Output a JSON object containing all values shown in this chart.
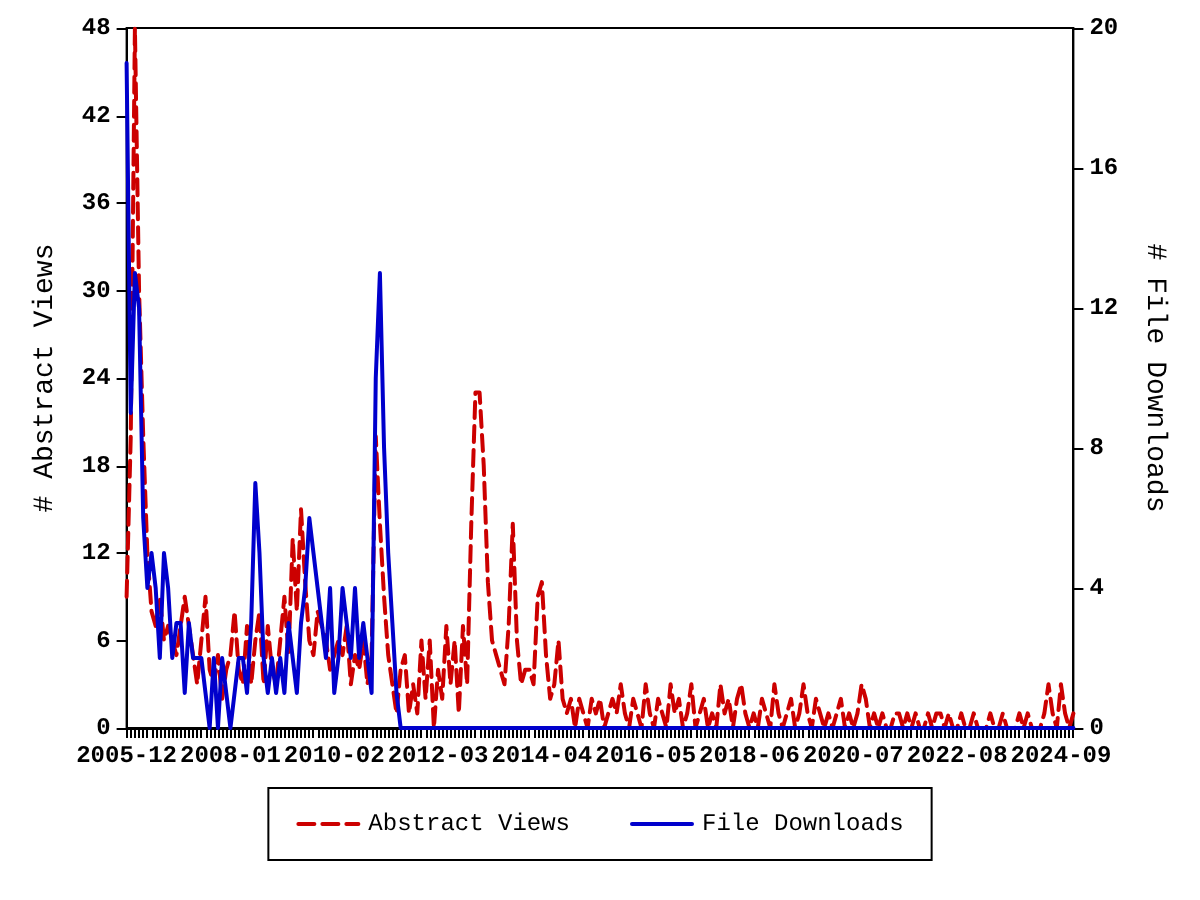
{
  "chart_data": {
    "type": "line",
    "ylabel": "# Abstract Views",
    "y2label": "# File Downloads",
    "ylim": [
      0,
      48
    ],
    "yticks": [
      0,
      6,
      12,
      18,
      24,
      30,
      36,
      42,
      48
    ],
    "y2lim": [
      0,
      20
    ],
    "y2ticks": [
      0,
      4,
      8,
      12,
      16,
      20
    ],
    "grid": false,
    "legend": "bottom",
    "marker": "none",
    "categories": [
      "2005-12",
      null,
      null,
      null,
      null,
      null,
      null,
      null,
      null,
      null,
      null,
      null,
      null,
      null,
      null,
      null,
      null,
      null,
      null,
      null,
      null,
      null,
      null,
      null,
      null,
      "2008-01",
      null,
      null,
      null,
      null,
      null,
      null,
      null,
      null,
      null,
      null,
      null,
      null,
      null,
      null,
      null,
      null,
      null,
      null,
      null,
      null,
      null,
      null,
      null,
      null,
      "2010-02",
      null,
      null,
      null,
      null,
      null,
      null,
      null,
      null,
      null,
      null,
      null,
      null,
      null,
      null,
      null,
      null,
      null,
      null,
      null,
      null,
      null,
      null,
      null,
      null,
      "2012-03",
      null,
      null,
      null,
      null,
      null,
      null,
      null,
      null,
      null,
      null,
      null,
      null,
      null,
      null,
      null,
      null,
      null,
      null,
      null,
      null,
      null,
      null,
      null,
      null,
      "2014-04",
      null,
      null,
      null,
      null,
      null,
      null,
      null,
      null,
      null,
      null,
      null,
      null,
      null,
      null,
      null,
      null,
      null,
      null,
      null,
      null,
      null,
      null,
      null,
      null,
      "2016-05",
      null,
      null,
      null,
      null,
      null,
      null,
      null,
      null,
      null,
      null,
      null,
      null,
      null,
      null,
      null,
      null,
      null,
      null,
      null,
      null,
      null,
      null,
      null,
      null,
      "2018-06",
      null,
      null,
      null,
      null,
      null,
      null,
      null,
      null,
      null,
      null,
      null,
      null,
      null,
      null,
      null,
      null,
      null,
      null,
      null,
      null,
      null,
      null,
      null,
      null,
      "2020-07",
      null,
      null,
      null,
      null,
      null,
      null,
      null,
      null,
      null,
      null,
      null,
      null,
      null,
      null,
      null,
      null,
      null,
      null,
      null,
      null,
      null,
      null,
      null,
      null,
      "2022-08",
      null,
      null,
      null,
      null,
      null,
      null,
      null,
      null,
      null,
      null,
      null,
      null,
      null,
      null,
      null,
      null,
      null,
      null,
      null,
      null,
      null,
      null,
      null,
      null,
      "2024-09",
      null,
      null,
      null
    ],
    "series": [
      {
        "name": "Abstract Views",
        "color": "#cc0000",
        "line_style": "dashed",
        "values": [
          9,
          20,
          48,
          30,
          20,
          12,
          8,
          7,
          9,
          6,
          7,
          6,
          5,
          7,
          9,
          7,
          5,
          3,
          6,
          9,
          4,
          3,
          5,
          2,
          4,
          5,
          8,
          4,
          3,
          7,
          3,
          6,
          8,
          3,
          7,
          4,
          3,
          6,
          9,
          5,
          13,
          8,
          15,
          10,
          6,
          5,
          8,
          7,
          6,
          4,
          5,
          6,
          5,
          7,
          3,
          5,
          4,
          6,
          3,
          5,
          20,
          14,
          9,
          5,
          3,
          1,
          4,
          5,
          1,
          3,
          1,
          6,
          2,
          6,
          0,
          4,
          2,
          7,
          3,
          6,
          1,
          7,
          3,
          14,
          23,
          23,
          18,
          10,
          6,
          5,
          4,
          3,
          7,
          14,
          6,
          3,
          4,
          4,
          3,
          9,
          10,
          5,
          2,
          3,
          6,
          2,
          1,
          2,
          0,
          2,
          1,
          0,
          2,
          1,
          2,
          0,
          1,
          2,
          1,
          3,
          1,
          0,
          2,
          1,
          0,
          3,
          1,
          0,
          2,
          1,
          0,
          3,
          1,
          2,
          0,
          1,
          3,
          0,
          1,
          2,
          0,
          1,
          0,
          3,
          1,
          2,
          0,
          2,
          3,
          1,
          0,
          1,
          0,
          2,
          1,
          0,
          3,
          1,
          0,
          1,
          2,
          0,
          1,
          3,
          1,
          0,
          2,
          1,
          0,
          1,
          0,
          1,
          2,
          0,
          1,
          0,
          1,
          3,
          2,
          0,
          1,
          0,
          1,
          0,
          0,
          1,
          1,
          0,
          1,
          0,
          1,
          0,
          0,
          1,
          0,
          1,
          1,
          0,
          1,
          0,
          0,
          1,
          0,
          0,
          1,
          0,
          0,
          0,
          1,
          0,
          0,
          1,
          0,
          0,
          0,
          1,
          0,
          1,
          0,
          0,
          0,
          1,
          3,
          1,
          0,
          3,
          1,
          0,
          1
        ]
      },
      {
        "name": "File Downloads",
        "color": "#0000cc",
        "line_style": "solid",
        "axis": "y2",
        "values": [
          19,
          9,
          13,
          12,
          6,
          4,
          5,
          4,
          2,
          5,
          4,
          2,
          3,
          3,
          1,
          3,
          2,
          2,
          2,
          1,
          0,
          2,
          0,
          2,
          1,
          0,
          1,
          2,
          2,
          1,
          3,
          7,
          5,
          2,
          1,
          2,
          1,
          2,
          1,
          3,
          2,
          1,
          3,
          4,
          6,
          5,
          4,
          3,
          2,
          4,
          1,
          2,
          4,
          3,
          2,
          4,
          2,
          3,
          2,
          1,
          10,
          13,
          8,
          5,
          3,
          1,
          0,
          0,
          0,
          0,
          0,
          0,
          0,
          0,
          0,
          0,
          0,
          0,
          0,
          0,
          0,
          0,
          0,
          0,
          0,
          0,
          0,
          0,
          0,
          0,
          0,
          0,
          0,
          0,
          0,
          0,
          0,
          0,
          0,
          0,
          0,
          0,
          0,
          0,
          0,
          0,
          0,
          0,
          0,
          0,
          0,
          0,
          0,
          0,
          0,
          0,
          0,
          0,
          0,
          0,
          0,
          0,
          0,
          0,
          0,
          0,
          0,
          0,
          0,
          0,
          0,
          0,
          0,
          0,
          0,
          0,
          0,
          0,
          0,
          0,
          0,
          0,
          0,
          0,
          0,
          0,
          0,
          0,
          0,
          0,
          0,
          0,
          0,
          0,
          0,
          0,
          0,
          0,
          0,
          0,
          0,
          0,
          0,
          0,
          0,
          0,
          0,
          0,
          0,
          0,
          0,
          0,
          0,
          0,
          0,
          0,
          0,
          0,
          0,
          0,
          0,
          0,
          0,
          0,
          0,
          0,
          0,
          0,
          0,
          0,
          0,
          0,
          0,
          0,
          0,
          0,
          0,
          0,
          0,
          0,
          0,
          0,
          0,
          0,
          0,
          0,
          0,
          0,
          0,
          0,
          0,
          0,
          0,
          0,
          0,
          0,
          0,
          0,
          0,
          0,
          0,
          0,
          0,
          0,
          0,
          0,
          0,
          0,
          0
        ]
      }
    ]
  }
}
